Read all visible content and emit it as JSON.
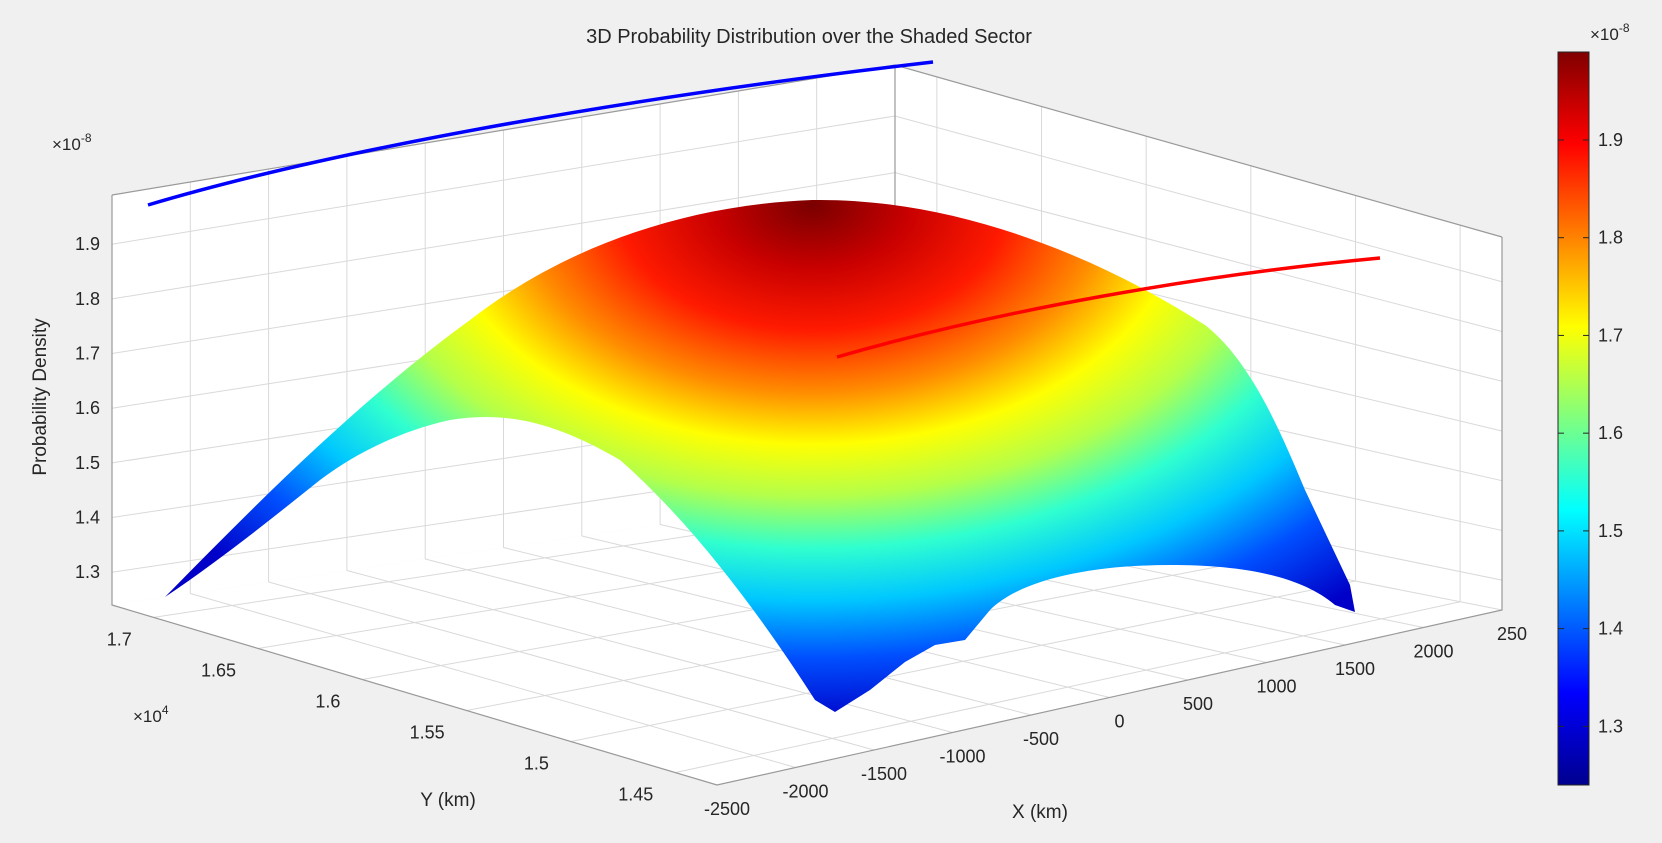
{
  "colors": {
    "background": "#f0f0f0",
    "grid": "#d2d2d2",
    "blue_curve": "#0000ff",
    "red_curve": "#ff0000",
    "colormap": "jet"
  },
  "chart_data": {
    "type": "surface3d",
    "title": "3D Probability Distribution over the Shaded Sector",
    "xlabel": "X (km)",
    "ylabel": "Y (km)",
    "zlabel": "Probability Density",
    "x_ticks": [
      "-2500",
      "-2000",
      "-1500",
      "-1000",
      "-500",
      "0",
      "500",
      "1000",
      "1500",
      "2000",
      "250"
    ],
    "y_ticks": [
      "1.45",
      "1.5",
      "1.55",
      "1.6",
      "1.65",
      "1.7"
    ],
    "y_multiplier": "×10",
    "y_multiplier_exp": "4",
    "z_ticks": [
      "1.3",
      "1.4",
      "1.5",
      "1.6",
      "1.7",
      "1.8",
      "1.9"
    ],
    "z_multiplier": "×10",
    "z_multiplier_exp": "-8",
    "colorbar_ticks": [
      "1.3",
      "1.4",
      "1.5",
      "1.6",
      "1.7",
      "1.8",
      "1.9"
    ],
    "colorbar_multiplier": "×10",
    "colorbar_multiplier_exp": "-8",
    "xlim": [
      -2500,
      2500
    ],
    "ylim": [
      14300,
      17200
    ],
    "zlim": [
      1.24e-08,
      1.99e-08
    ],
    "clim": [
      1.24e-08,
      1.99e-08
    ],
    "grid": true,
    "peak_value": 1.97e-08,
    "series": [
      {
        "kind": "surface",
        "z_range": [
          1.24e-08,
          1.97e-08
        ]
      },
      {
        "kind": "line",
        "color": "blue"
      },
      {
        "kind": "line",
        "color": "red"
      }
    ]
  }
}
